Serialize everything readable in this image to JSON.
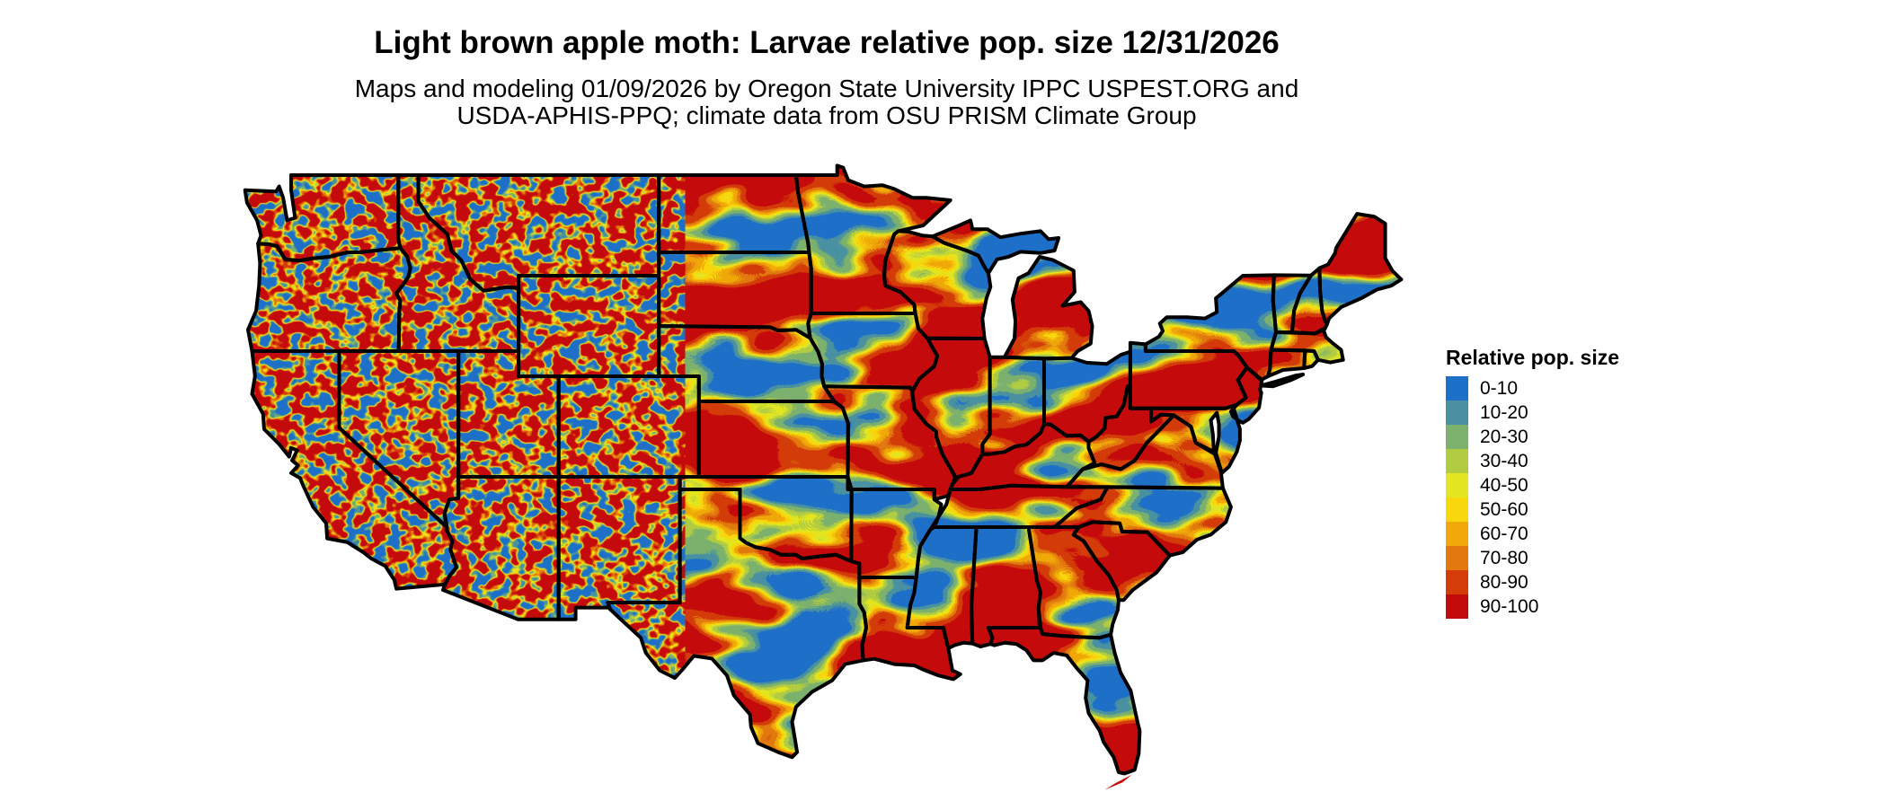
{
  "header": {
    "title": "Light brown apple moth: Larvae relative pop. size 12/31/2026",
    "subtitle_line1": "Maps and modeling 01/09/2026 by Oregon State University IPPC USPEST.ORG and",
    "subtitle_line2": "USDA-APHIS-PPQ; climate data from OSU PRISM Climate Group"
  },
  "legend": {
    "title": "Relative pop. size",
    "items": [
      {
        "label": "0-10",
        "color": "#1d70c8"
      },
      {
        "label": "10-20",
        "color": "#4a90a2"
      },
      {
        "label": "20-30",
        "color": "#7cb26e"
      },
      {
        "label": "30-40",
        "color": "#b2cc42"
      },
      {
        "label": "40-50",
        "color": "#e3e621"
      },
      {
        "label": "50-60",
        "color": "#f8d70c"
      },
      {
        "label": "60-70",
        "color": "#f1a80a"
      },
      {
        "label": "70-80",
        "color": "#e2790e"
      },
      {
        "label": "80-90",
        "color": "#d43d0a"
      },
      {
        "label": "90-100",
        "color": "#c40b0b"
      }
    ]
  },
  "map": {
    "region": "Continental United States",
    "state_border_color": "#000000",
    "water_background_color": "#ffffff"
  }
}
